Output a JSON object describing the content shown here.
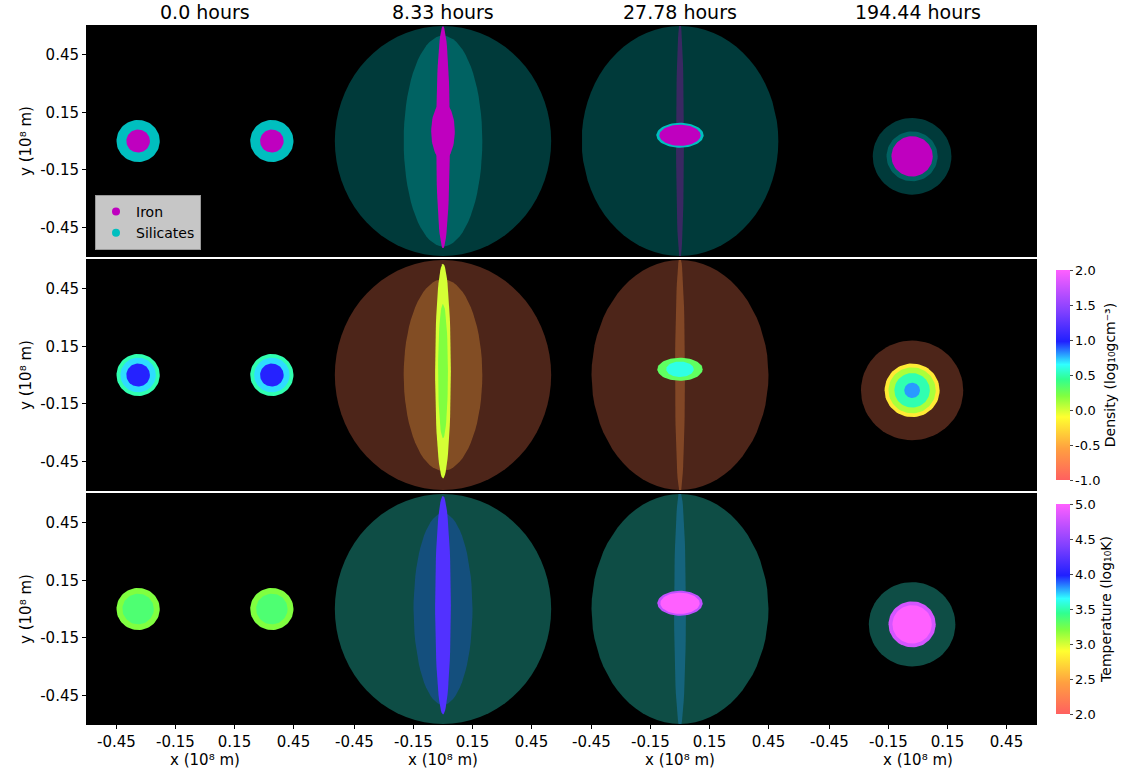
{
  "chart_data": {
    "type": "scatter",
    "columns": [
      "0.0 hours",
      "8.33 hours",
      "27.78 hours",
      "194.44 hours"
    ],
    "xlabel": "x (10⁸ m)",
    "ylabel": "y (10⁸ m)",
    "xlim": [
      -0.6,
      0.6
    ],
    "ylim": [
      -0.6,
      0.6
    ],
    "xticks": [
      -0.45,
      -0.15,
      0.15,
      0.45
    ],
    "yticks": [
      -0.45,
      -0.15,
      0.15,
      0.45
    ],
    "rows": [
      {
        "series": [
          {
            "name": "Iron",
            "color": "#bf00bf"
          },
          {
            "name": "Silicates",
            "color": "#00bfbf"
          }
        ],
        "legend": "lower left",
        "panels": [
          [
            {
              "series": "Silicates",
              "center": [
                -0.34,
                0.0
              ],
              "radii": [
                0.11,
                0.11
              ],
              "marker": "solid"
            },
            {
              "series": "Iron",
              "center": [
                -0.34,
                0.0
              ],
              "radii": [
                0.06,
                0.06
              ],
              "marker": "solid"
            },
            {
              "series": "Silicates",
              "center": [
                0.34,
                0.0
              ],
              "radii": [
                0.11,
                0.11
              ],
              "marker": "solid"
            },
            {
              "series": "Iron",
              "center": [
                0.34,
                0.0
              ],
              "radii": [
                0.06,
                0.06
              ],
              "marker": "solid"
            }
          ],
          [
            {
              "series": "Silicates",
              "center": [
                0.0,
                0.0
              ],
              "radii": [
                0.55,
                0.6
              ],
              "marker": "cloud"
            },
            {
              "series": "Silicates",
              "center": [
                0.0,
                0.0
              ],
              "radii": [
                0.2,
                0.55
              ],
              "marker": "cloud"
            },
            {
              "series": "Iron",
              "center": [
                0.0,
                0.02
              ],
              "radii": [
                0.035,
                0.58
              ],
              "marker": "solid"
            },
            {
              "series": "Iron",
              "center": [
                0.0,
                0.05
              ],
              "radii": [
                0.06,
                0.15
              ],
              "marker": "solid"
            }
          ],
          [
            {
              "series": "Silicates",
              "center": [
                0.0,
                0.0
              ],
              "radii": [
                0.5,
                0.6
              ],
              "marker": "cloud"
            },
            {
              "series": "Iron",
              "center": [
                0.0,
                0.0
              ],
              "radii": [
                0.02,
                0.62
              ],
              "marker": "cloud"
            },
            {
              "series": "Silicates",
              "center": [
                0.0,
                0.03
              ],
              "radii": [
                0.12,
                0.065
              ],
              "marker": "solid"
            },
            {
              "series": "Iron",
              "center": [
                0.0,
                0.03
              ],
              "radii": [
                0.105,
                0.055
              ],
              "marker": "solid"
            }
          ],
          [
            {
              "series": "Silicates",
              "center": [
                -0.03,
                -0.08
              ],
              "radii": [
                0.2,
                0.2
              ],
              "marker": "cloud"
            },
            {
              "series": "Silicates",
              "center": [
                -0.03,
                -0.08
              ],
              "radii": [
                0.13,
                0.13
              ],
              "marker": "cloud"
            },
            {
              "series": "Iron",
              "center": [
                -0.03,
                -0.08
              ],
              "radii": [
                0.105,
                0.105
              ],
              "marker": "solid"
            }
          ]
        ]
      },
      {
        "colorbar": {
          "title": "Density (log₁₀gcm⁻³)",
          "range": [
            -1,
            2
          ],
          "ticks": [
            {
              "value": -1,
              "label": "-1.0"
            },
            {
              "value": -0.5,
              "label": "-0.5"
            },
            {
              "value": 0,
              "label": "0.0"
            },
            {
              "value": 0.5,
              "label": "0.5"
            },
            {
              "value": 1,
              "label": "1.0"
            },
            {
              "value": 1.5,
              "label": "1.5"
            },
            {
              "value": 2,
              "label": "2.0"
            }
          ]
        },
        "panels": [
          [
            {
              "value": 0.5,
              "center": [
                -0.34,
                0.0
              ],
              "radii": [
                0.11,
                0.11
              ],
              "marker": "solid"
            },
            {
              "value": 0.7,
              "center": [
                -0.34,
                0.0
              ],
              "radii": [
                0.09,
                0.09
              ],
              "marker": "solid"
            },
            {
              "value": 1.0,
              "center": [
                -0.34,
                0.0
              ],
              "radii": [
                0.06,
                0.06
              ],
              "marker": "solid"
            },
            {
              "value": 0.5,
              "center": [
                0.34,
                0.0
              ],
              "radii": [
                0.11,
                0.11
              ],
              "marker": "solid"
            },
            {
              "value": 0.7,
              "center": [
                0.34,
                0.0
              ],
              "radii": [
                0.09,
                0.09
              ],
              "marker": "solid"
            },
            {
              "value": 1.0,
              "center": [
                0.34,
                0.0
              ],
              "radii": [
                0.06,
                0.06
              ],
              "marker": "solid"
            }
          ],
          [
            {
              "value": -0.8,
              "center": [
                0.0,
                0.0
              ],
              "radii": [
                0.55,
                0.6
              ],
              "marker": "cloud"
            },
            {
              "value": -0.5,
              "center": [
                0.0,
                0.0
              ],
              "radii": [
                0.2,
                0.5
              ],
              "marker": "cloud"
            },
            {
              "value": 0.0,
              "center": [
                0.0,
                0.02
              ],
              "radii": [
                0.04,
                0.56
              ],
              "marker": "solid"
            },
            {
              "value": 0.2,
              "center": [
                0.0,
                0.02
              ],
              "radii": [
                0.025,
                0.35
              ],
              "marker": "solid"
            }
          ],
          [
            {
              "value": -0.8,
              "center": [
                0.0,
                0.0
              ],
              "radii": [
                0.45,
                0.6
              ],
              "marker": "cloud"
            },
            {
              "value": -0.6,
              "center": [
                0.0,
                0.0
              ],
              "radii": [
                0.025,
                0.62
              ],
              "marker": "cloud"
            },
            {
              "value": 0.3,
              "center": [
                0.0,
                0.03
              ],
              "radii": [
                0.115,
                0.06
              ],
              "marker": "solid"
            },
            {
              "value": 0.6,
              "center": [
                0.0,
                0.03
              ],
              "radii": [
                0.07,
                0.04
              ],
              "marker": "solid"
            }
          ],
          [
            {
              "value": -0.8,
              "center": [
                -0.03,
                -0.08
              ],
              "radii": [
                0.26,
                0.26
              ],
              "marker": "cloud"
            },
            {
              "value": -0.2,
              "center": [
                -0.03,
                -0.08
              ],
              "radii": [
                0.14,
                0.14
              ],
              "marker": "solid"
            },
            {
              "value": 0.1,
              "center": [
                -0.03,
                -0.08
              ],
              "radii": [
                0.12,
                0.12
              ],
              "marker": "solid"
            },
            {
              "value": 0.5,
              "center": [
                -0.03,
                -0.08
              ],
              "radii": [
                0.09,
                0.09
              ],
              "marker": "solid"
            },
            {
              "value": 0.8,
              "center": [
                -0.03,
                -0.08
              ],
              "radii": [
                0.04,
                0.04
              ],
              "marker": "solid"
            }
          ]
        ]
      },
      {
        "colorbar": {
          "title": "Temperature (log₁₀K)",
          "range": [
            2,
            5
          ],
          "ticks": [
            {
              "value": 2,
              "label": "2.0"
            },
            {
              "value": 2.5,
              "label": "2.5"
            },
            {
              "value": 3,
              "label": "3.0"
            },
            {
              "value": 3.5,
              "label": "3.5"
            },
            {
              "value": 4,
              "label": "4.0"
            },
            {
              "value": 4.5,
              "label": "4.5"
            },
            {
              "value": 5,
              "label": "5.0"
            }
          ]
        },
        "panels": [
          [
            {
              "value": 3.2,
              "center": [
                -0.34,
                0.0
              ],
              "radii": [
                0.11,
                0.11
              ],
              "marker": "solid"
            },
            {
              "value": 3.35,
              "center": [
                -0.34,
                0.0
              ],
              "radii": [
                0.08,
                0.08
              ],
              "marker": "solid"
            },
            {
              "value": 3.2,
              "center": [
                0.34,
                0.0
              ],
              "radii": [
                0.11,
                0.11
              ],
              "marker": "solid"
            },
            {
              "value": 3.35,
              "center": [
                0.34,
                0.0
              ],
              "radii": [
                0.08,
                0.08
              ],
              "marker": "solid"
            }
          ],
          [
            {
              "value": 3.6,
              "center": [
                0.0,
                0.0
              ],
              "radii": [
                0.55,
                0.6
              ],
              "marker": "cloud"
            },
            {
              "value": 3.9,
              "center": [
                0.0,
                0.0
              ],
              "radii": [
                0.15,
                0.5
              ],
              "marker": "cloud"
            },
            {
              "value": 4.2,
              "center": [
                0.0,
                0.02
              ],
              "radii": [
                0.04,
                0.57
              ],
              "marker": "solid"
            }
          ],
          [
            {
              "value": 3.6,
              "center": [
                0.0,
                0.0
              ],
              "radii": [
                0.45,
                0.6
              ],
              "marker": "cloud"
            },
            {
              "value": 3.8,
              "center": [
                0.0,
                0.0
              ],
              "radii": [
                0.03,
                0.62
              ],
              "marker": "cloud"
            },
            {
              "value": 4.7,
              "center": [
                0.0,
                0.03
              ],
              "radii": [
                0.115,
                0.065
              ],
              "marker": "solid"
            },
            {
              "value": 5.0,
              "center": [
                0.0,
                0.03
              ],
              "radii": [
                0.1,
                0.055
              ],
              "marker": "solid"
            }
          ],
          [
            {
              "value": 3.6,
              "center": [
                -0.03,
                -0.08
              ],
              "radii": [
                0.22,
                0.22
              ],
              "marker": "cloud"
            },
            {
              "value": 4.8,
              "center": [
                -0.03,
                -0.08
              ],
              "radii": [
                0.12,
                0.12
              ],
              "marker": "solid"
            },
            {
              "value": 5.0,
              "center": [
                -0.03,
                -0.08
              ],
              "radii": [
                0.1,
                0.1
              ],
              "marker": "solid"
            }
          ]
        ]
      }
    ]
  }
}
